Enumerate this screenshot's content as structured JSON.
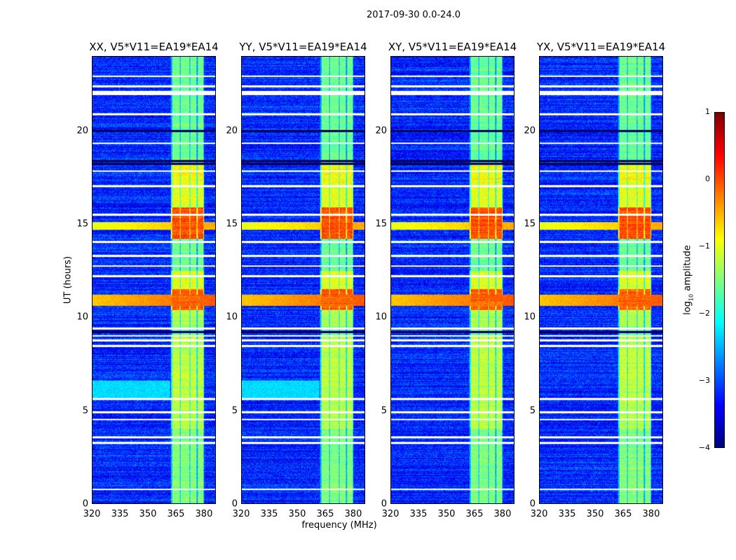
{
  "chart_data": {
    "type": "heatmap",
    "title": "2017-09-30 0.0-24.0",
    "xlabel": "frequency (MHz)",
    "ylabel": "UT (hours)",
    "xlim": [
      320,
      386.4
    ],
    "ylim": [
      0,
      24
    ],
    "xticks": [
      320,
      335,
      350,
      365,
      380
    ],
    "yticks": [
      0,
      5,
      10,
      15,
      20
    ],
    "colormap": "jet",
    "panels": [
      {
        "title": "XX, V5*V11=EA19*EA14",
        "wide_band_5_6h": true
      },
      {
        "title": "YY, V5*V11=EA19*EA14",
        "wide_band_5_6h": true
      },
      {
        "title": "XY, V5*V11=EA19*EA14",
        "wide_band_5_6h": false
      },
      {
        "title": "YX, V5*V11=EA19*EA14",
        "wide_band_5_6h": false
      }
    ],
    "features": {
      "background_level": -3.2,
      "bright_band_mhz": [
        [
          363,
          367.3
        ],
        [
          367.8,
          372.4
        ],
        [
          372.9,
          376.4
        ],
        [
          376.9,
          380
        ]
      ],
      "band_level_by_hour": [
        [
          0,
          4,
          -1.5
        ],
        [
          4,
          9,
          -1.2
        ],
        [
          9.5,
          10.4,
          -1.3
        ],
        [
          10.4,
          11.5,
          -0.1
        ],
        [
          11.5,
          12.5,
          -1.0
        ],
        [
          12.5,
          14.2,
          -1.6
        ],
        [
          14.2,
          15.9,
          0.0
        ],
        [
          15.9,
          17.2,
          -1.0
        ],
        [
          17.2,
          18.3,
          -0.9
        ],
        [
          18.3,
          24,
          -1.6
        ]
      ],
      "broadband_rfi_hours": [
        [
          10.6,
          11.2,
          -0.6
        ],
        [
          14.7,
          15.1,
          -1.0
        ]
      ],
      "flagged_hours": [
        0.75,
        3.25,
        3.55,
        4.5,
        4.9,
        5.6,
        8.45,
        8.75,
        9.0,
        9.4,
        12.2,
        12.75,
        13.3,
        14.05,
        15.5,
        17.05,
        17.85,
        19.35,
        20.9,
        22.0,
        22.1,
        22.4,
        22.95
      ],
      "dark_hours": [
        9.2,
        18.25,
        18.4,
        20.0
      ]
    },
    "colorbar": {
      "label_main": "log",
      "label_sub": "10",
      "label_rest": " amplitude",
      "range": [
        -4,
        1
      ],
      "ticks": [
        1,
        0,
        -1,
        -2,
        -3,
        -4
      ],
      "tick_labels": [
        "1",
        "0",
        "−1",
        "−2",
        "−3",
        "−4"
      ]
    }
  }
}
